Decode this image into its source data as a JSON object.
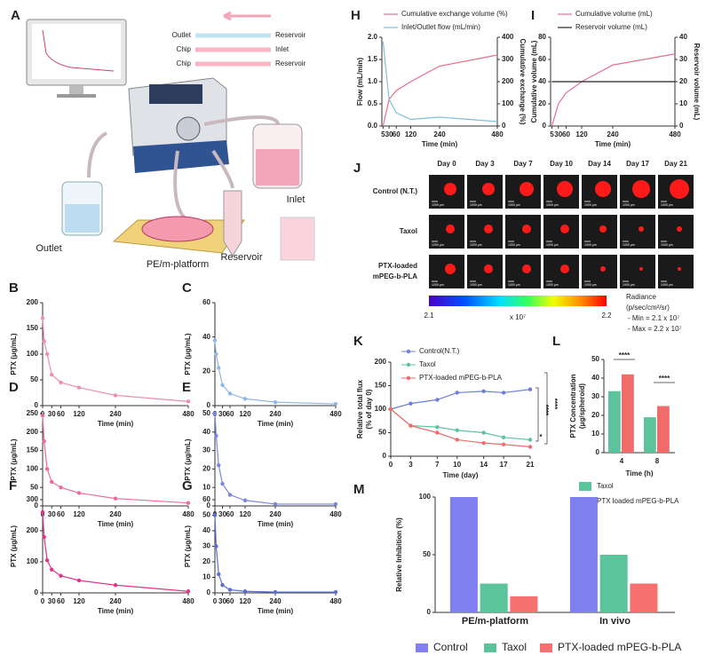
{
  "panel_labels": [
    "A",
    "B",
    "C",
    "D",
    "E",
    "F",
    "G",
    "H",
    "I",
    "J",
    "K",
    "L",
    "M"
  ],
  "diagram": {
    "tube_legend": {
      "left": [
        "Outlet",
        "Chip",
        "Chip"
      ],
      "right": [
        "Reservoir",
        "Inlet",
        "Reservoir"
      ]
    },
    "labels": {
      "inlet": "Inlet",
      "outlet": "Outlet",
      "platform": "PE/m-platform",
      "reservoir": "Reservoir"
    }
  },
  "imaging": {
    "days": [
      "Day 0",
      "Day 3",
      "Day 7",
      "Day 10",
      "Day 14",
      "Day 17",
      "Day 21"
    ],
    "rows": [
      [
        "Control (N.T.)"
      ],
      [
        "Taxol"
      ],
      [
        "PTX-loaded",
        "mPEG-b-PLA"
      ]
    ],
    "scale_bar": "1000 μm",
    "colorbar": {
      "min_label": "2.1",
      "max_label": "2.2",
      "exponent": "x 10⁷",
      "title": "Radiance",
      "unit": "(p/sec/cm²/sr)",
      "min": "- Min = 2.1 x 10⁷",
      "max": "- Max = 2.2 x 10⁷"
    }
  },
  "chart_data": [
    {
      "type": "line",
      "x": [
        0,
        5,
        15,
        30,
        60,
        120,
        240,
        480
      ],
      "xlim": [
        0,
        480
      ],
      "xticks": [
        0,
        30,
        60,
        120,
        240,
        480
      ],
      "x_label": "Time (min)",
      "y_label": "PTX (μg/mL)",
      "markers": true,
      "color": "#f08db4",
      "ylim": [
        0,
        200
      ],
      "yticks": [
        0,
        50,
        100,
        150,
        200
      ],
      "values": [
        170,
        125,
        100,
        60,
        45,
        35,
        20,
        8
      ]
    },
    {
      "type": "line",
      "x": [
        0,
        5,
        15,
        30,
        60,
        120,
        240,
        480
      ],
      "xlim": [
        0,
        480
      ],
      "xticks": [
        0,
        30,
        60,
        120,
        240,
        480
      ],
      "x_label": "Time (min)",
      "y_label": "PTX (μg/mL)",
      "markers": true,
      "color": "#8fb8e8",
      "ylim": [
        0,
        60
      ],
      "yticks": [
        0,
        20,
        40,
        60
      ],
      "values": [
        38,
        30,
        22,
        12,
        7,
        4,
        2,
        1
      ]
    },
    {
      "type": "line",
      "x": [
        0,
        5,
        15,
        30,
        60,
        120,
        240,
        480
      ],
      "xlim": [
        0,
        480
      ],
      "xticks": [
        0,
        30,
        60,
        120,
        240,
        480
      ],
      "x_label": "Time (min)",
      "y_label": "PTX (μg/mL)",
      "markers": true,
      "color": "#ec6aa0",
      "ylim": [
        0,
        250
      ],
      "yticks": [
        0,
        50,
        100,
        150,
        200,
        250
      ],
      "values": [
        245,
        175,
        100,
        65,
        50,
        35,
        20,
        8
      ]
    },
    {
      "type": "line",
      "x": [
        0,
        5,
        15,
        30,
        60,
        120,
        240,
        480
      ],
      "xlim": [
        0,
        480
      ],
      "xticks": [
        0,
        30,
        60,
        120,
        240,
        480
      ],
      "x_label": "Time (min)",
      "y_label": "PTX (μg/mL)",
      "markers": true,
      "color": "#7b86e0",
      "ylim": [
        0,
        50
      ],
      "yticks": [
        0,
        10,
        20,
        30,
        40,
        50
      ],
      "values": [
        50,
        38,
        22,
        12,
        6,
        3,
        1,
        1
      ]
    },
    {
      "type": "line",
      "x": [
        0,
        5,
        15,
        30,
        60,
        120,
        240,
        480
      ],
      "xlim": [
        0,
        480
      ],
      "xticks": [
        0,
        30,
        60,
        120,
        240,
        480
      ],
      "x_label": "Time (min)",
      "y_label": "PTX (μg/mL)",
      "markers": true,
      "color": "#e0358a",
      "ylim": [
        0,
        300
      ],
      "yticks": [
        0,
        100,
        200,
        300
      ],
      "values": [
        260,
        180,
        105,
        75,
        55,
        40,
        25,
        5
      ]
    },
    {
      "type": "line",
      "x": [
        0,
        5,
        15,
        30,
        60,
        120,
        240,
        480
      ],
      "xlim": [
        0,
        480
      ],
      "xticks": [
        0,
        30,
        60,
        120,
        240,
        480
      ],
      "x_label": "Time (min)",
      "y_label": "PTX (μg/mL)",
      "markers": true,
      "color": "#5a6fd6",
      "ylim": [
        0,
        60
      ],
      "yticks": [
        0,
        10,
        20,
        30,
        40,
        50,
        60
      ],
      "values": [
        50,
        30,
        12,
        5,
        2,
        1,
        0.5,
        0.5
      ]
    },
    {
      "type": "line",
      "x": [
        5,
        30,
        60,
        120,
        240,
        480
      ],
      "xlim": [
        0,
        480
      ],
      "xticks": [
        5,
        30,
        60,
        120,
        240,
        480
      ],
      "x_label": "Time (min)",
      "y_label": "Flow (mL/min)",
      "y2_label": "Cumulative exchange (%)",
      "ylim": [
        0,
        2
      ],
      "yticks": [
        {
          "value": 0,
          "label": "0.0"
        },
        {
          "value": 0.5,
          "label": "0.5"
        },
        {
          "value": 1,
          "label": "1.0"
        },
        {
          "value": 1.5,
          "label": "1.5"
        },
        {
          "value": 2,
          "label": "2.0"
        }
      ],
      "y2lim": [
        0,
        400
      ],
      "y2ticks": [
        0,
        100,
        200,
        300,
        400
      ],
      "series": [
        {
          "name": "Cumulative exchange volume (%)",
          "color": "#e8708a",
          "axis": "y2",
          "values": [
            0,
            120,
            160,
            200,
            270,
            320
          ]
        },
        {
          "name": "Inlet/Outlet flow (mL/min)",
          "color": "#7fbfd8",
          "values": [
            1.9,
            0.6,
            0.3,
            0.15,
            0.2,
            0.1
          ]
        }
      ]
    },
    {
      "type": "line",
      "x": [
        5,
        30,
        60,
        120,
        240,
        480
      ],
      "xlim": [
        0,
        480
      ],
      "xticks": [
        5,
        30,
        60,
        120,
        240,
        480
      ],
      "x_label": "Time (min)",
      "y_label": "Cumulative volume (mL)",
      "y2_label": "Reservoir volume (mL)",
      "ylim": [
        0,
        80
      ],
      "yticks": [
        0,
        20,
        40,
        60,
        80
      ],
      "y2lim": [
        0,
        40
      ],
      "y2ticks": [
        0,
        10,
        20,
        30,
        40
      ],
      "series": [
        {
          "name": "Cumulative volume (mL)",
          "color": "#e8708a",
          "values": [
            0,
            20,
            30,
            40,
            55,
            65
          ]
        },
        {
          "name": "Reservoir volume (mL)",
          "color": "#222222",
          "axis": "y2",
          "values": [
            20,
            20,
            20,
            20,
            20,
            20
          ]
        }
      ]
    },
    {
      "type": "line",
      "x": [
        0,
        3,
        7,
        10,
        14,
        17,
        21
      ],
      "xlim": [
        0,
        21
      ],
      "xticks": [
        0,
        3,
        7,
        10,
        14,
        17,
        21
      ],
      "x_label": "Time (day)",
      "y_label": [
        "Relative total flux",
        "(% of day 0)"
      ],
      "markers": true,
      "ylim": [
        0,
        200
      ],
      "yticks": [
        0,
        50,
        100,
        150,
        200
      ],
      "series": [
        {
          "name": "Control(N.T.)",
          "color": "#6b7fe0",
          "values": [
            100,
            112,
            120,
            135,
            138,
            135,
            142
          ]
        },
        {
          "name": "Taxol",
          "color": "#5cc49a",
          "values": [
            100,
            65,
            62,
            55,
            50,
            40,
            35
          ]
        },
        {
          "name": "PTX-loaded mPEG-b-PLA",
          "color": "#f26b6b",
          "values": [
            100,
            65,
            50,
            35,
            28,
            25,
            20
          ]
        }
      ],
      "annotations": [
        "****",
        "****",
        "*"
      ]
    },
    {
      "type": "bar",
      "categories": [
        "4",
        "8"
      ],
      "x_label": "Time (h)",
      "y_label": [
        "PTX Concentration",
        "(μg/spheroid)"
      ],
      "ylim": [
        0,
        50
      ],
      "yticks": [
        0,
        10,
        20,
        30,
        40,
        50
      ],
      "series": [
        {
          "name": "Taxol",
          "color": "#5cc49a",
          "values": [
            33,
            19
          ]
        },
        {
          "name": "PTX loaded mPEG-b-PLA",
          "color": "#f26b6b",
          "values": [
            42,
            25
          ]
        }
      ],
      "annotations": [
        "****",
        "****"
      ]
    },
    {
      "type": "bar",
      "categories": [
        "PE/m-platform",
        "In vivo"
      ],
      "y_label": "Relative Inhibition (%)",
      "ylim": [
        0,
        100
      ],
      "yticks": [
        0,
        50,
        100
      ],
      "series": [
        {
          "name": "Control",
          "color": "#8080f0",
          "values": [
            100,
            100
          ]
        },
        {
          "name": "Taxol",
          "color": "#5cc49a",
          "values": [
            25,
            50
          ]
        },
        {
          "name": "PTX-loaded mPEG-b-PLA",
          "color": "#f77070",
          "values": [
            14,
            25
          ]
        }
      ]
    }
  ]
}
